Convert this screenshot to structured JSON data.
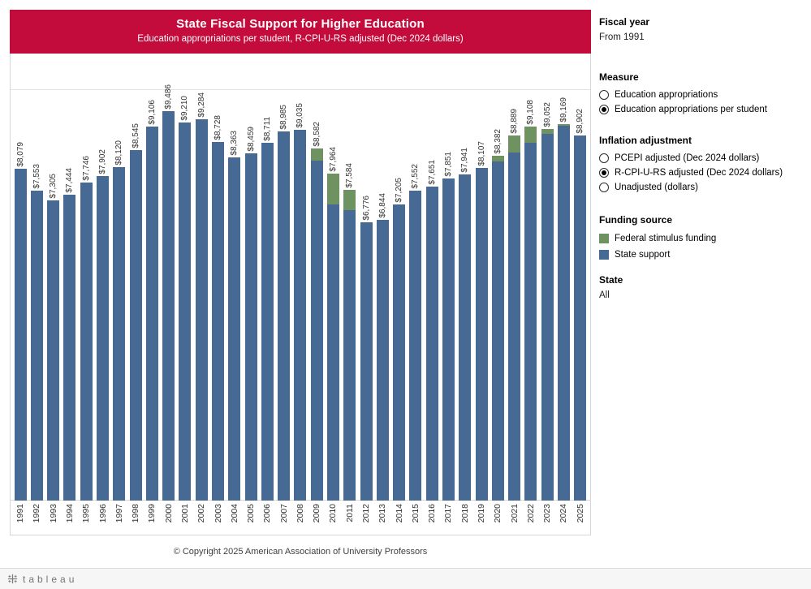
{
  "colors": {
    "banner": "#c30b3c",
    "state_support": "#466a93",
    "federal_stimulus": "#6f9360"
  },
  "header": {
    "title": "State Fiscal Support for Higher Education",
    "subtitle": "Education appropriations per student, R-CPI-U-RS adjusted (Dec 2024 dollars)"
  },
  "chart_data": {
    "type": "bar",
    "stacked": true,
    "title": "State Fiscal Support for Higher Education",
    "subtitle": "Education appropriations per student, R-CPI-U-RS adjusted (Dec 2024 dollars)",
    "categories": [
      "1991",
      "1992",
      "1993",
      "1994",
      "1995",
      "1996",
      "1997",
      "1998",
      "1999",
      "2000",
      "2001",
      "2002",
      "2003",
      "2004",
      "2005",
      "2006",
      "2007",
      "2008",
      "2009",
      "2010",
      "2011",
      "2012",
      "2013",
      "2014",
      "2015",
      "2016",
      "2017",
      "2018",
      "2019",
      "2020",
      "2021",
      "2022",
      "2023",
      "2024",
      "2025"
    ],
    "series": [
      {
        "key": "stimulus",
        "name": "Federal stimulus funding",
        "color": "#6f9360",
        "values": [
          0,
          0,
          0,
          0,
          0,
          0,
          0,
          0,
          0,
          0,
          0,
          0,
          0,
          0,
          0,
          0,
          0,
          0,
          300,
          750,
          500,
          0,
          0,
          0,
          0,
          0,
          0,
          0,
          0,
          130,
          420,
          400,
          120,
          30,
          0
        ]
      },
      {
        "key": "state",
        "name": "State support",
        "color": "#466a93",
        "values": [
          8079,
          7553,
          7305,
          7444,
          7746,
          7902,
          8120,
          8545,
          9106,
          9486,
          9210,
          9284,
          8728,
          8363,
          8459,
          8711,
          8985,
          9035,
          8282,
          7214,
          7084,
          6776,
          6844,
          7205,
          7552,
          7651,
          7851,
          7941,
          8107,
          8252,
          8469,
          8708,
          8932,
          9139,
          8902
        ]
      }
    ],
    "totals": [
      8079,
      7553,
      7305,
      7444,
      7746,
      7902,
      8120,
      8545,
      9106,
      9486,
      9210,
      9284,
      8728,
      8363,
      8459,
      8711,
      8985,
      9035,
      8582,
      7964,
      7584,
      6776,
      6844,
      7205,
      7552,
      7651,
      7851,
      7941,
      8107,
      8382,
      8889,
      9108,
      9052,
      9169,
      8902
    ],
    "ylim": [
      0,
      10000
    ],
    "gridline_values": [
      10000
    ],
    "legend_position": "right",
    "bar_label_format": "$#,###"
  },
  "sidebar": {
    "fiscal_year": {
      "label": "Fiscal year",
      "value": "From 1991"
    },
    "measure": {
      "label": "Measure",
      "options": [
        {
          "label": "Education appropriations",
          "selected": false
        },
        {
          "label": "Education appropriations per student",
          "selected": true
        }
      ]
    },
    "inflation": {
      "label": "Inflation adjustment",
      "options": [
        {
          "label": "PCEPI adjusted (Dec 2024 dollars)",
          "selected": false
        },
        {
          "label": "R-CPI-U-RS adjusted (Dec 2024 dollars)",
          "selected": true
        },
        {
          "label": "Unadjusted (dollars)",
          "selected": false
        }
      ]
    },
    "funding_source": {
      "label": "Funding source",
      "items": [
        {
          "label": "Federal stimulus funding",
          "color": "#6f9360"
        },
        {
          "label": "State support",
          "color": "#466a93"
        }
      ]
    },
    "state": {
      "label": "State",
      "value": "All"
    }
  },
  "footer": {
    "copyright": "© Copyright 2025 American Association of University Professors"
  },
  "toolbar": {
    "brand": "tableau"
  }
}
